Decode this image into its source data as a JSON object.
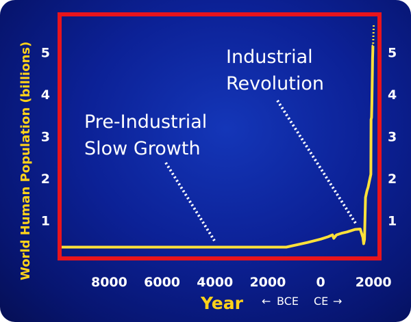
{
  "chart_data": {
    "type": "line",
    "xlabel": "Year",
    "ylabel": "World Human Population (billions)",
    "x_ticks": [
      {
        "value": -8000,
        "label": "8000"
      },
      {
        "value": -6000,
        "label": "6000"
      },
      {
        "value": -4000,
        "label": "4000"
      },
      {
        "value": -2000,
        "label": "2000"
      },
      {
        "value": 0,
        "label": "0"
      },
      {
        "value": 2000,
        "label": "2000"
      }
    ],
    "y_ticks": [
      1,
      2,
      3,
      4,
      5
    ],
    "xlim": [
      -9800,
      2150
    ],
    "ylim": [
      0.15,
      5.85
    ],
    "era_label": {
      "left": "BCE",
      "right": "CE"
    },
    "annotations": [
      {
        "lines": [
          "Pre-Industrial",
          "Slow Growth"
        ]
      },
      {
        "lines": [
          "Industrial",
          "Revolution"
        ]
      }
    ],
    "series": [
      {
        "color": "#ffe13a",
        "x": [
          -9800,
          -1300,
          -500,
          0,
          300,
          450,
          500,
          600,
          800,
          1000,
          1300,
          1500,
          1600,
          1630,
          1660,
          1700,
          1750,
          1800,
          1850,
          1900,
          1910,
          1927,
          1940,
          1950,
          1960,
          1965,
          1974,
          1980,
          1987
        ],
        "y": [
          0.37,
          0.37,
          0.48,
          0.56,
          0.62,
          0.66,
          0.58,
          0.66,
          0.7,
          0.73,
          0.79,
          0.8,
          0.6,
          0.45,
          0.55,
          1.55,
          1.7,
          1.8,
          1.95,
          2.1,
          3.4,
          3.45,
          3.8,
          4.2,
          4.6,
          4.85,
          5.0,
          5.15,
          5.15
        ]
      },
      {
        "color": "#ffe13a",
        "style": "dotted",
        "x": [
          1987,
          2000,
          2010
        ],
        "y": [
          5.2,
          5.45,
          5.65
        ]
      }
    ]
  }
}
